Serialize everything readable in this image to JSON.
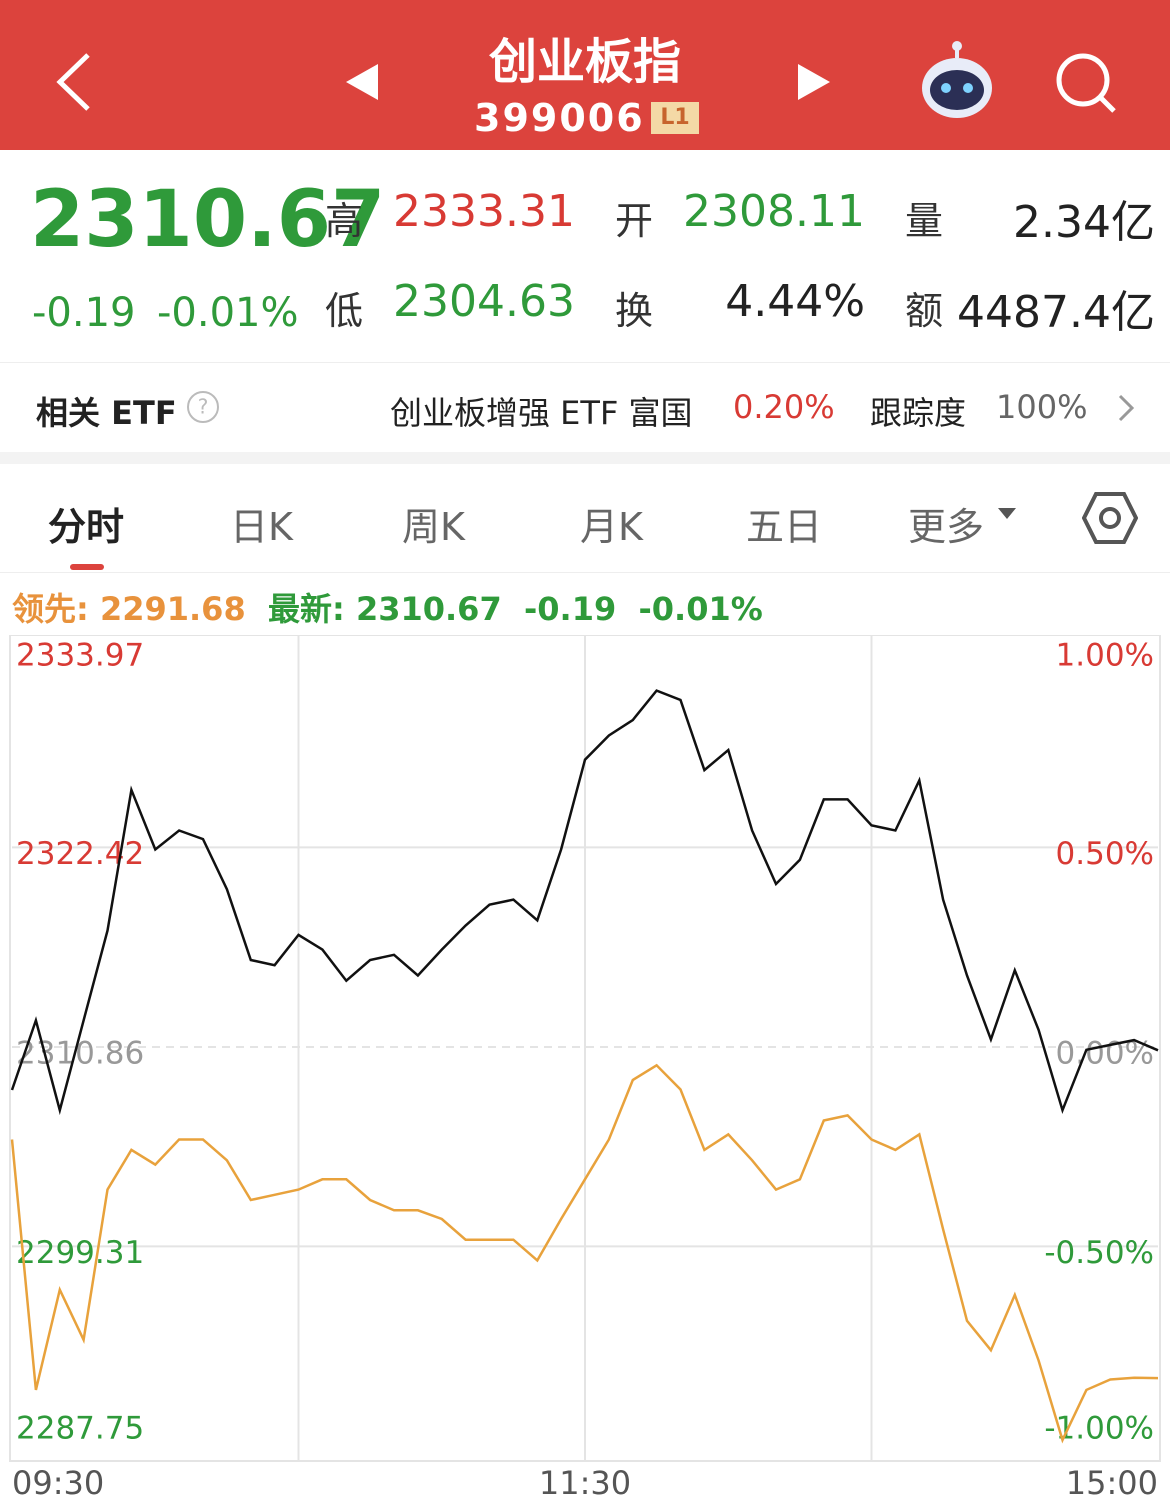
{
  "header": {
    "title": "创业板指",
    "code": "399006",
    "level": "L1"
  },
  "quote": {
    "price": "2310.67",
    "change": "-0.19",
    "change_pct": "-0.01%",
    "fields": [
      {
        "label": "高",
        "value": "2333.31"
      },
      {
        "label": "开",
        "value": "2308.11"
      },
      {
        "label": "量",
        "value": "2.34亿"
      },
      {
        "label": "低",
        "value": "2304.63"
      },
      {
        "label": "换",
        "value": "4.44%"
      },
      {
        "label": "额",
        "value": "4487.4亿"
      }
    ]
  },
  "etf": {
    "label": "相关 ETF",
    "name": "创业板增强 ETF 富国",
    "change": "0.20%",
    "tracking_label": "跟踪度",
    "tracking": "100%"
  },
  "tabs": [
    "分时",
    "日K",
    "周K",
    "月K",
    "五日",
    "更多"
  ],
  "chart_data": {
    "type": "line",
    "legend": {
      "lead_label": "领先:",
      "lead": "2291.68",
      "latest_label": "最新:",
      "latest": "2310.67",
      "change": "-0.19",
      "change_pct": "-0.01%"
    },
    "x": [
      0,
      5,
      10,
      15,
      20,
      25,
      30,
      35,
      40,
      45,
      50,
      55,
      60,
      65,
      70,
      75,
      80,
      85,
      90,
      95,
      100,
      105,
      110,
      115,
      120,
      125,
      130,
      135,
      140,
      145,
      150,
      155,
      160,
      165,
      170,
      175,
      180,
      185,
      190,
      195,
      200,
      205,
      210,
      215,
      220,
      225,
      230,
      235,
      240
    ],
    "xlim": [
      0,
      240
    ],
    "xticks": [
      {
        "value": 0,
        "label": "09:30"
      },
      {
        "value": 120,
        "label": "11:30"
      },
      {
        "value": 240,
        "label": "15:00"
      }
    ],
    "ylim": [
      2287.75,
      2333.97
    ],
    "yticks": [
      2333.97,
      2322.42,
      2310.86,
      2299.31,
      2287.75
    ],
    "y2lim": [
      -1,
      1
    ],
    "y2ticks": [
      {
        "value": 1,
        "label": "1.00%"
      },
      {
        "value": 0.5,
        "label": "0.50%"
      },
      {
        "value": 0,
        "label": "0.00%"
      },
      {
        "value": -0.5,
        "label": "-0.50%"
      },
      {
        "value": -1,
        "label": "-1.00%"
      }
    ],
    "series": [
      {
        "name": "最新:",
        "color": "#111111",
        "values": [
          2308.37,
          2312.4,
          2307.2,
          2312.4,
          2317.6,
          2325.75,
          2322.3,
          2323.4,
          2322.9,
          2320.0,
          2315.9,
          2315.6,
          2317.35,
          2316.5,
          2314.7,
          2315.9,
          2316.2,
          2315.0,
          2316.5,
          2317.9,
          2319.1,
          2319.4,
          2318.2,
          2322.3,
          2327.5,
          2328.9,
          2329.8,
          2331.5,
          2330.96,
          2326.9,
          2328.06,
          2323.4,
          2320.3,
          2321.7,
          2325.2,
          2325.2,
          2323.7,
          2323.4,
          2326.3,
          2319.4,
          2315.0,
          2311.3,
          2315.3,
          2311.85,
          2307.2,
          2310.7,
          2310.98,
          2311.26,
          2310.67
        ]
      },
      {
        "name": "领先:",
        "color": "#e8a23c",
        "values": [
          2305.5,
          2291.0,
          2296.8,
          2293.9,
          2302.6,
          2304.9,
          2304.05,
          2305.5,
          2305.5,
          2304.3,
          2302.0,
          2302.3,
          2302.6,
          2303.2,
          2303.2,
          2302.0,
          2301.4,
          2301.4,
          2300.9,
          2299.7,
          2299.7,
          2299.7,
          2298.5,
          2300.9,
          2303.2,
          2305.5,
          2308.95,
          2309.8,
          2308.4,
          2304.9,
          2305.8,
          2304.3,
          2302.6,
          2303.2,
          2306.6,
          2306.9,
          2305.5,
          2304.9,
          2305.8,
          2300.3,
          2295.0,
          2293.3,
          2296.5,
          2292.7,
          2288.1,
          2291.0,
          2291.6,
          2291.7,
          2291.68
        ]
      }
    ],
    "grid": true
  }
}
